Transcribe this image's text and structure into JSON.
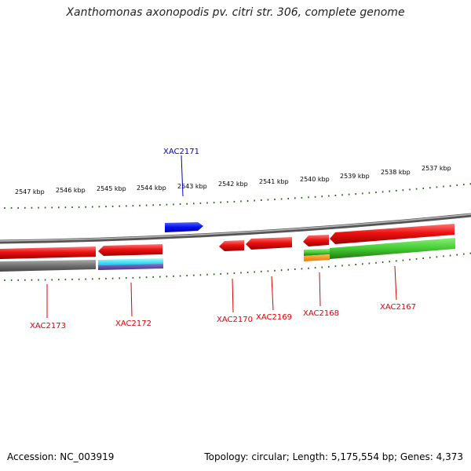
{
  "title": "Xanthomonas axonopodis pv. citri str. 306, complete genome",
  "accession": "Accession: NC_003919",
  "summary": "Topology: circular; Length: 5,175,554 bp; Genes: 4,373",
  "ticks": [
    "2547 kbp",
    "2546 kbp",
    "2545 kbp",
    "2544 kbp",
    "2543 kbp",
    "2542 kbp",
    "2541 kbp",
    "2540 kbp",
    "2539 kbp",
    "2538 kbp",
    "2537 kbp"
  ],
  "genes": [
    "XAC2173",
    "XAC2172",
    "XAC2171",
    "XAC2170",
    "XAC2169",
    "XAC2168",
    "XAC2167"
  ],
  "colors": {
    "cds_red": "#ee1111",
    "label_red": "#dd0000",
    "label_blue": "#0000cc",
    "gene_blue": "#0011ee",
    "tick_green": "#226611",
    "green_feature": "#44cc33",
    "gray_feature": "#707070",
    "cyan_feature": "#11e8ee",
    "purple_feature": "#5544aa",
    "orange_feature": "#ff9922"
  }
}
